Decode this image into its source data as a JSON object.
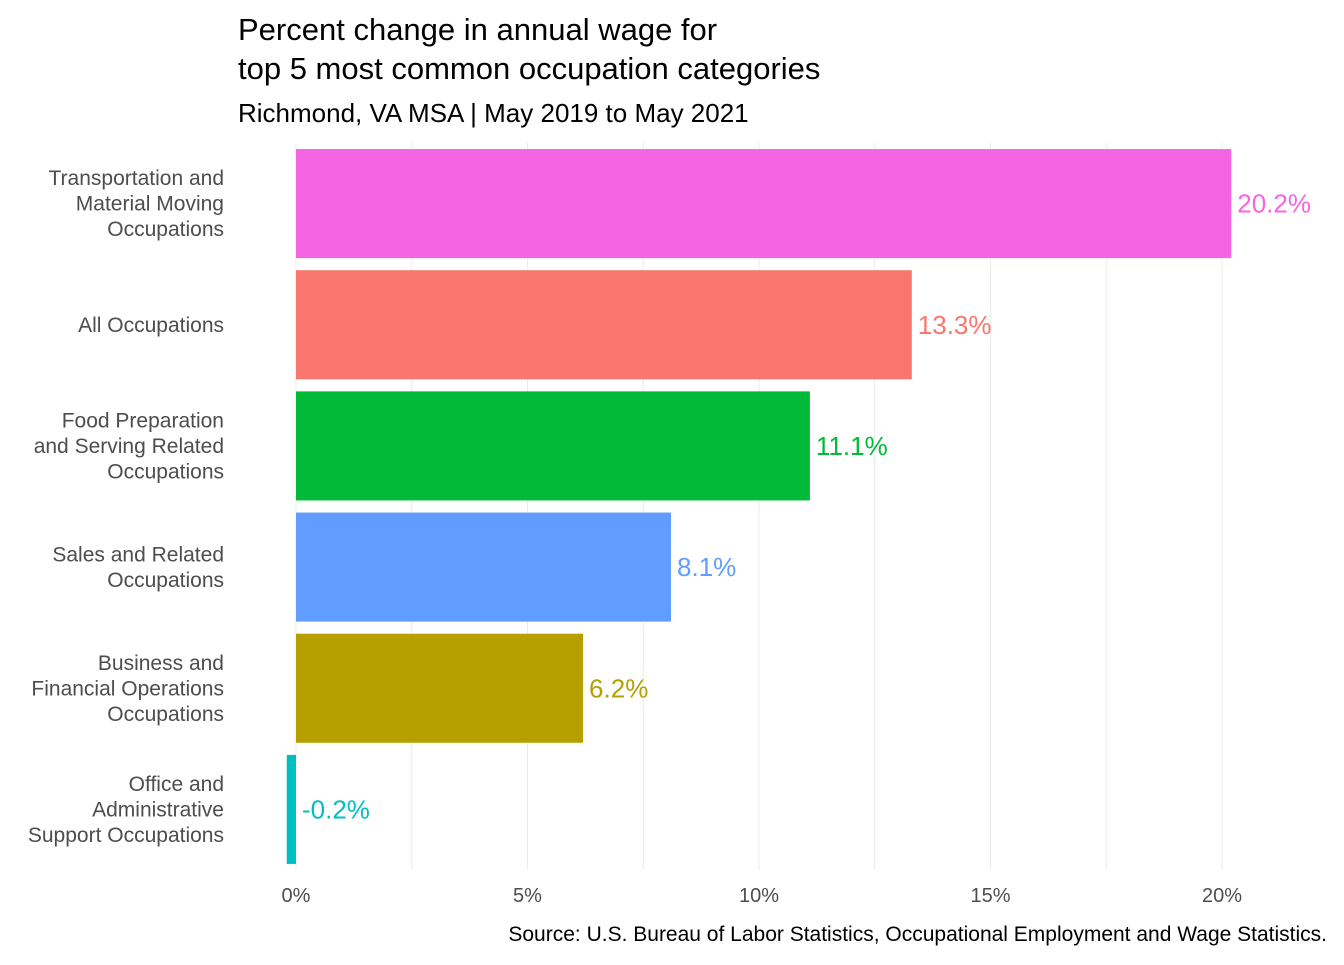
{
  "chart_data": {
    "type": "bar",
    "orientation": "horizontal",
    "title_lines": [
      "Percent change in annual wage for",
      "top 5 most common occupation categories"
    ],
    "subtitle": "Richmond, VA MSA | May 2019 to May 2021",
    "caption": "Source: U.S. Bureau of Labor Statistics, Occupational Employment and Wage Statistics.",
    "xlabel": "",
    "ylabel": "",
    "xlim": [
      -0.2,
      20.5
    ],
    "x_ticks": [
      0,
      5,
      10,
      15,
      20
    ],
    "x_tick_labels": [
      "0%",
      "5%",
      "10%",
      "15%",
      "20%"
    ],
    "grid": true,
    "legend": "none",
    "categories": [
      {
        "label_lines": [
          "Transportation and",
          "Material Moving",
          "Occupations"
        ],
        "value": 20.2,
        "value_label": "20.2%",
        "color": "#F564E3"
      },
      {
        "label_lines": [
          "All Occupations"
        ],
        "value": 13.3,
        "value_label": "13.3%",
        "color": "#F8766D"
      },
      {
        "label_lines": [
          "Food Preparation",
          "and Serving Related",
          "Occupations"
        ],
        "value": 11.1,
        "value_label": "11.1%",
        "color": "#00BA38"
      },
      {
        "label_lines": [
          "Sales and Related",
          "Occupations"
        ],
        "value": 8.1,
        "value_label": "8.1%",
        "color": "#619CFF"
      },
      {
        "label_lines": [
          "Business and",
          "Financial Operations",
          "Occupations"
        ],
        "value": 6.2,
        "value_label": "6.2%",
        "color": "#B79F00"
      },
      {
        "label_lines": [
          "Office and",
          "Administrative",
          "Support Occupations"
        ],
        "value": -0.2,
        "value_label": "-0.2%",
        "color": "#00BFC4"
      }
    ]
  }
}
